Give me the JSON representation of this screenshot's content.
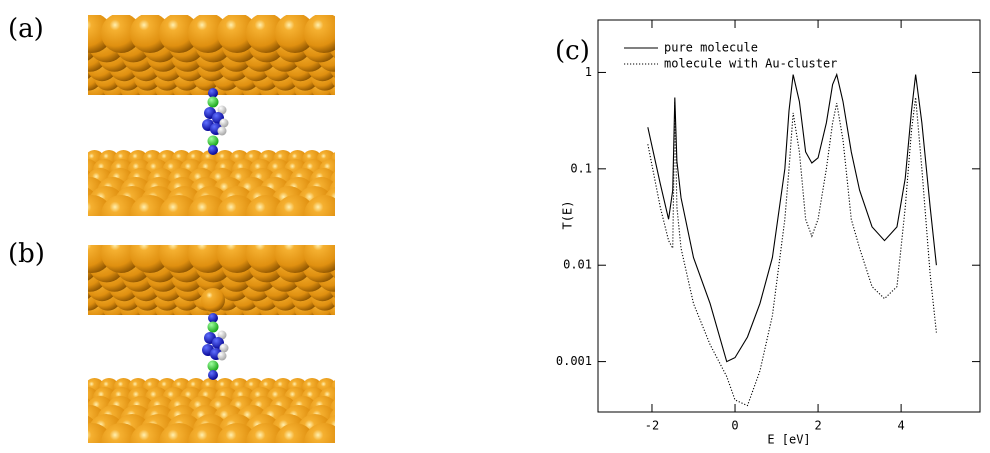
{
  "panels": [
    {
      "label": "(a)"
    },
    {
      "label": "(b)"
    }
  ],
  "chart_data": {
    "type": "line",
    "panel_label": "(c)",
    "x_label": "E [eV]",
    "y_label": "T(E)",
    "log_y": true,
    "legend": "upper left",
    "x": [
      -2.1,
      -1.8,
      -1.6,
      -1.5,
      -1.45,
      -1.4,
      -1.3,
      -1.0,
      -0.6,
      -0.2,
      0,
      0.3,
      0.6,
      0.9,
      1.2,
      1.3,
      1.4,
      1.55,
      1.7,
      1.85,
      2.0,
      2.2,
      2.35,
      2.45,
      2.6,
      2.8,
      3.0,
      3.3,
      3.6,
      3.9,
      4.1,
      4.25,
      4.35,
      4.5,
      4.7,
      4.85
    ],
    "series": [
      {
        "name": "pure molecule",
        "color": "#000000",
        "style": "solid",
        "values": [
          0.27,
          0.07,
          0.03,
          0.06,
          0.55,
          0.12,
          0.05,
          0.012,
          0.004,
          0.001,
          0.0011,
          0.0018,
          0.004,
          0.012,
          0.1,
          0.4,
          0.95,
          0.5,
          0.15,
          0.115,
          0.13,
          0.3,
          0.75,
          0.95,
          0.5,
          0.15,
          0.06,
          0.025,
          0.018,
          0.025,
          0.08,
          0.4,
          0.95,
          0.3,
          0.04,
          0.01
        ]
      },
      {
        "name": "molecule with Au-cluster",
        "color": "#000000",
        "style": "dotted",
        "values": [
          0.18,
          0.04,
          0.018,
          0.015,
          0.5,
          0.04,
          0.015,
          0.004,
          0.0015,
          0.0007,
          0.0004,
          0.00035,
          0.0008,
          0.003,
          0.03,
          0.1,
          0.38,
          0.15,
          0.03,
          0.02,
          0.03,
          0.1,
          0.3,
          0.48,
          0.2,
          0.03,
          0.015,
          0.006,
          0.0045,
          0.006,
          0.04,
          0.25,
          0.55,
          0.1,
          0.008,
          0.002
        ]
      }
    ],
    "xlim": [
      -3.3,
      5.9
    ],
    "xticks": [
      -2,
      0,
      2,
      4
    ],
    "ylim": [
      0.0003,
      3.5
    ],
    "yticks": [
      0.001,
      0.01,
      0.1,
      1
    ]
  }
}
